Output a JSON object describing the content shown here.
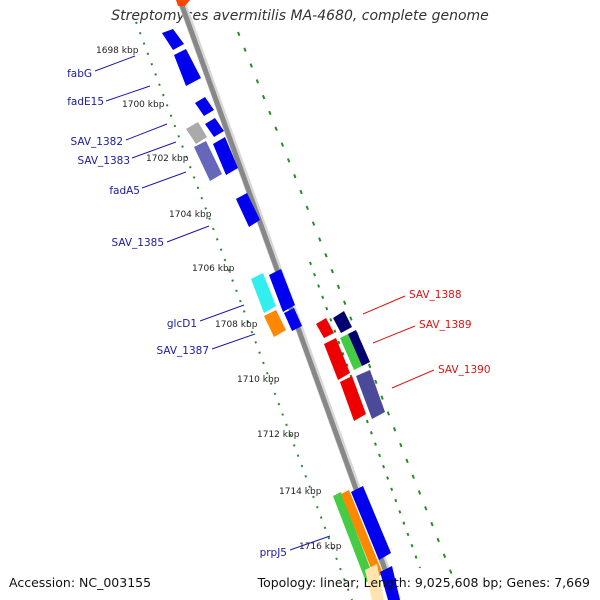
{
  "title": "Streptomyces avermitilis MA-4680, complete genome",
  "footer": {
    "accession": "Accession: NC_003155",
    "summary": "Topology: linear; Length: 9,025,608 bp; Genes: 7,669"
  },
  "ticks": [
    "1698 kbp",
    "1700 kbp",
    "1702 kbp",
    "1704 kbp",
    "1706 kbp",
    "1708 kbp",
    "1710 kbp",
    "1712 kbp",
    "1714 kbp",
    "1716 kbp"
  ],
  "left_labels": [
    "fabG",
    "fadE15",
    "SAV_1382",
    "SAV_1383",
    "fadA5",
    "SAV_1385",
    "glcD1",
    "SAV_1387",
    "prpJ5"
  ],
  "right_labels": [
    "SAV_1388",
    "SAV_1389",
    "SAV_1390"
  ],
  "colors": {
    "forward_label": "#1a1aa6",
    "reverse_label": "#dd1111",
    "backbone": "#888888",
    "tick_marks": "#2a8a2a",
    "blue_gene": "#0000ee",
    "red_gene": "#ee0000",
    "navy_gene": "#000070",
    "purple_gene": "#6666bb",
    "cyan_gene": "#33eeee",
    "orange_gene": "#ff8800",
    "green_gene": "#44cc44",
    "grey_gene": "#aaaaaa"
  }
}
